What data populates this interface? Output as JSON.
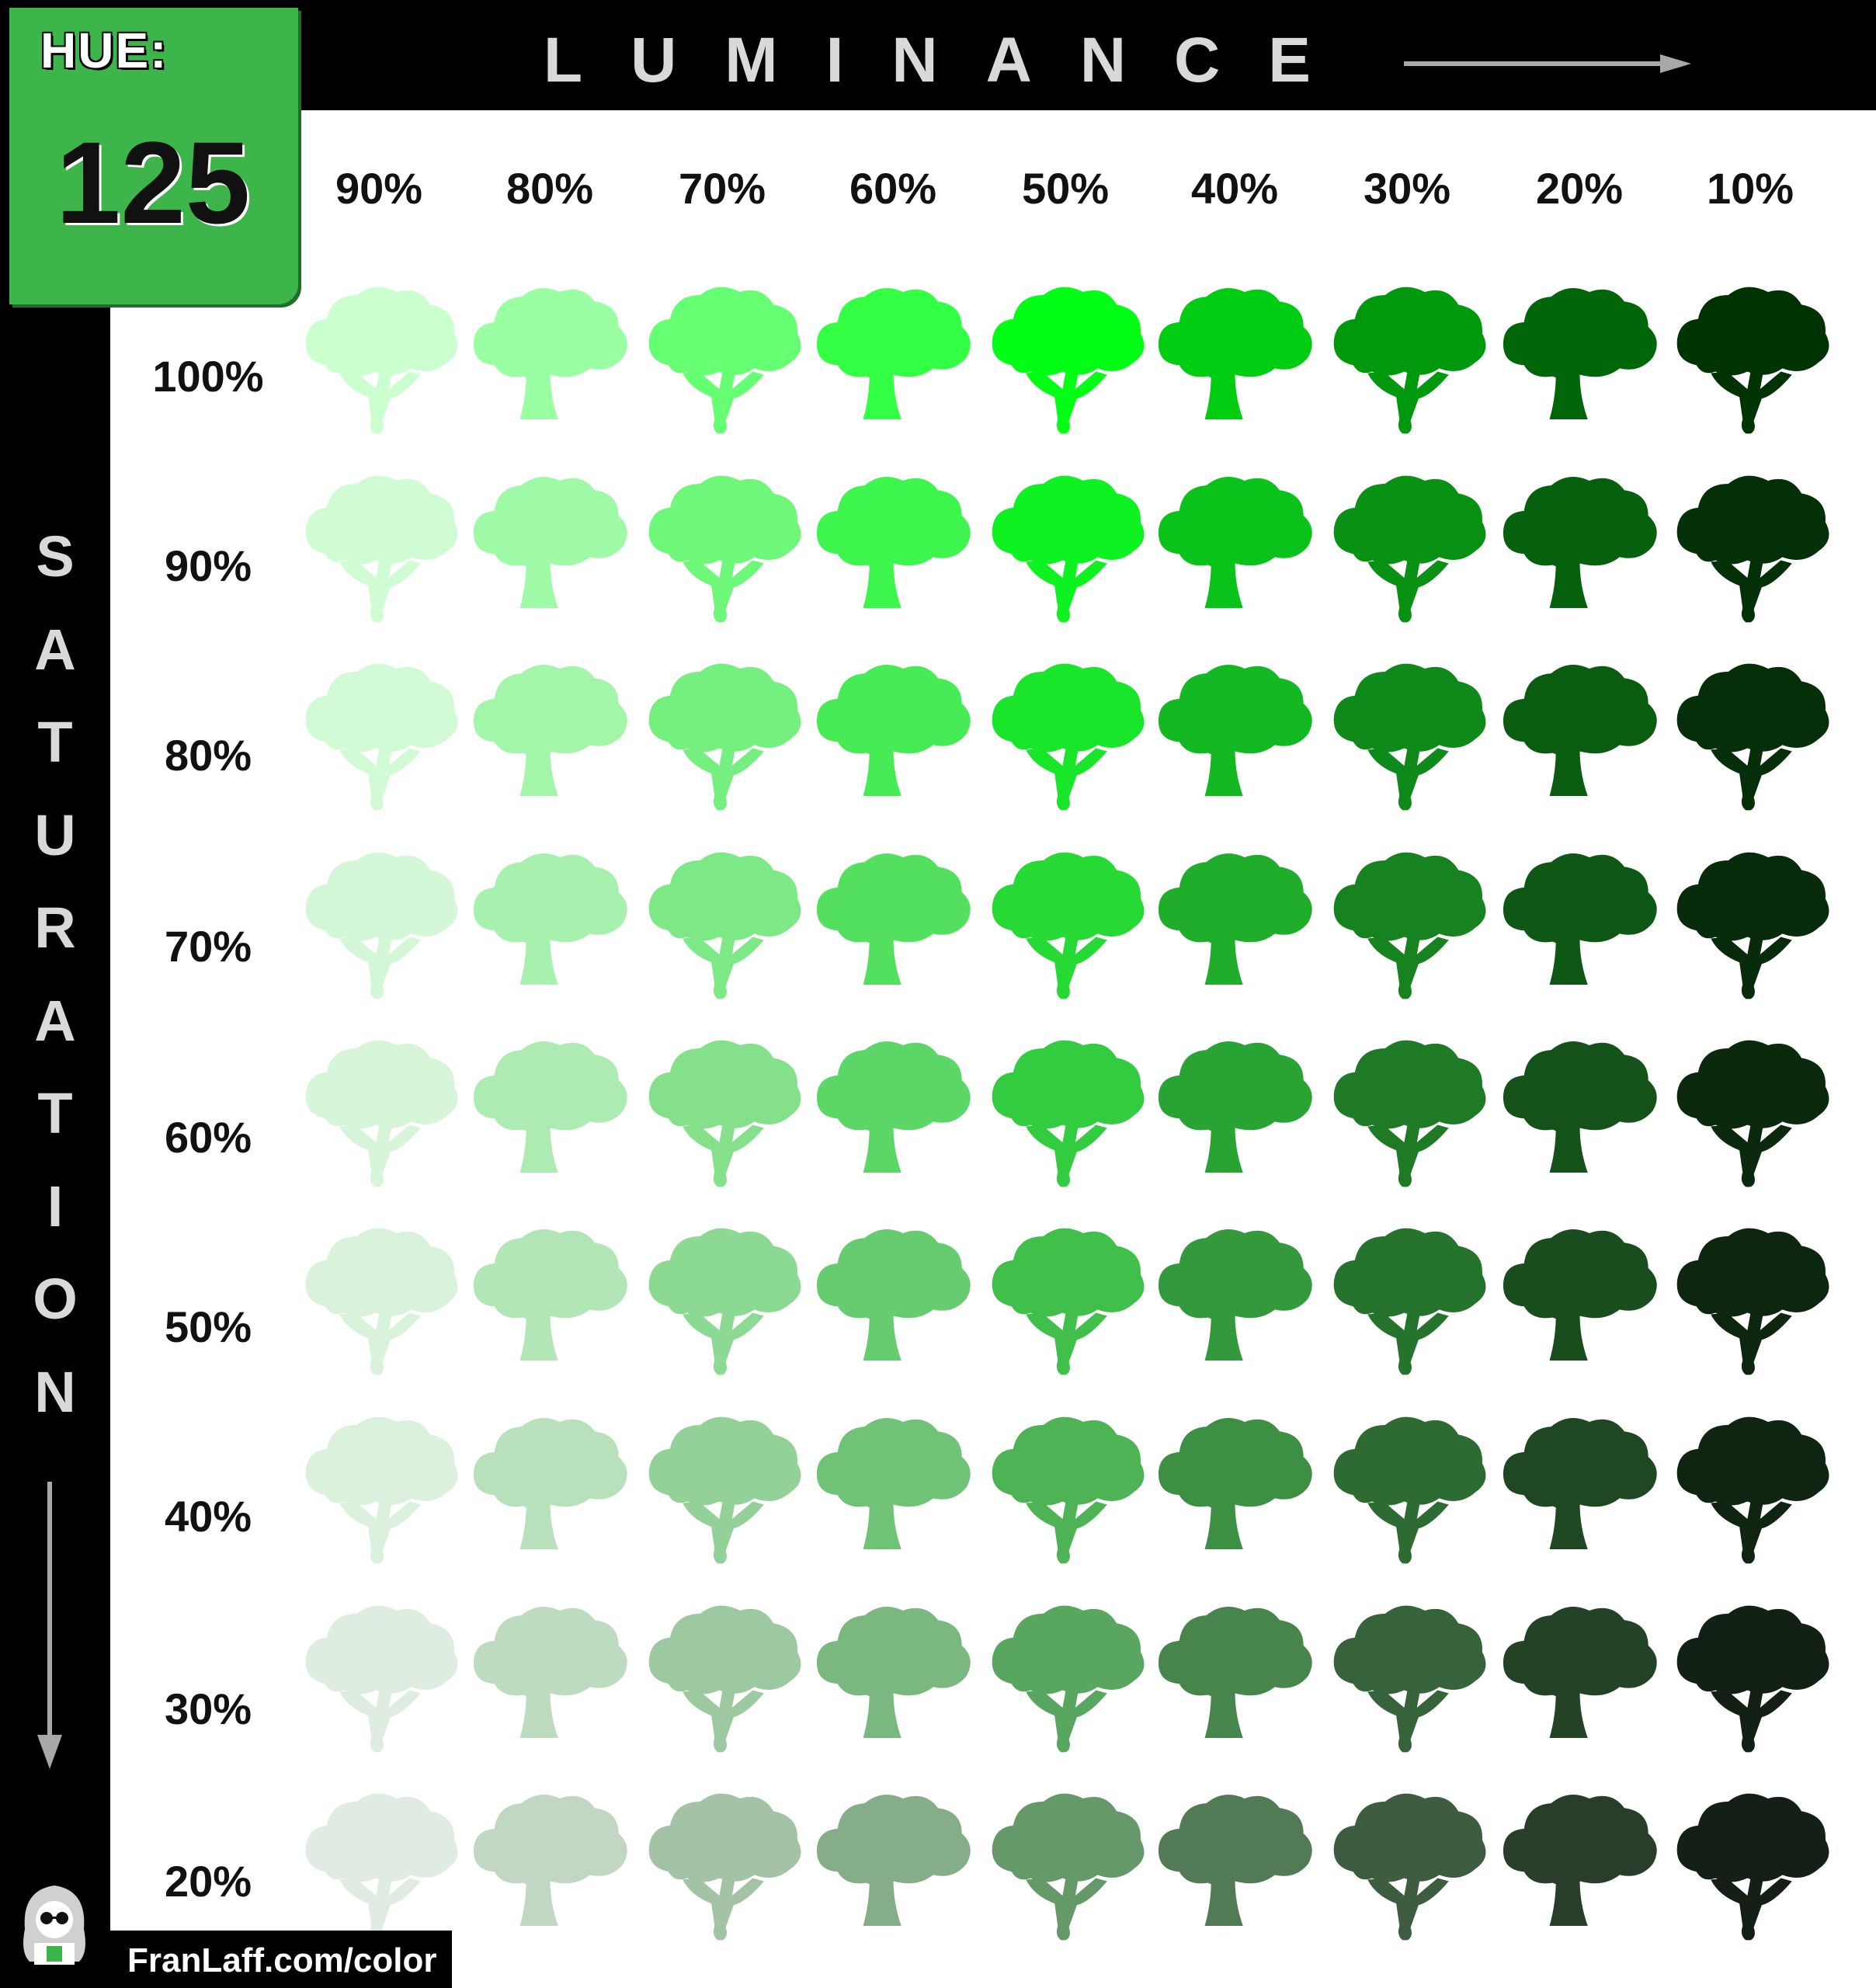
{
  "hue": {
    "label": "HUE:",
    "value": "125"
  },
  "luminance": {
    "title": "LUMINANCE",
    "labels": [
      "90%",
      "80%",
      "70%",
      "60%",
      "50%",
      "40%",
      "30%",
      "20%",
      "10%"
    ]
  },
  "saturation": {
    "title": "SATURATION",
    "labels": [
      "100%",
      "90%",
      "80%",
      "70%",
      "60%",
      "50%",
      "40%",
      "30%",
      "20%"
    ]
  },
  "footer": {
    "credit": "FranLaff.com/color"
  },
  "colors": {
    "accent": "#3db54a",
    "bar": "#000000",
    "title_text": "#d9d9d9"
  },
  "grid": {
    "hue_degrees": 125,
    "luminance_percent": [
      90,
      80,
      70,
      60,
      50,
      40,
      30,
      20,
      10
    ],
    "saturation_percent": [
      100,
      90,
      80,
      70,
      60,
      50,
      40,
      30,
      20
    ]
  }
}
